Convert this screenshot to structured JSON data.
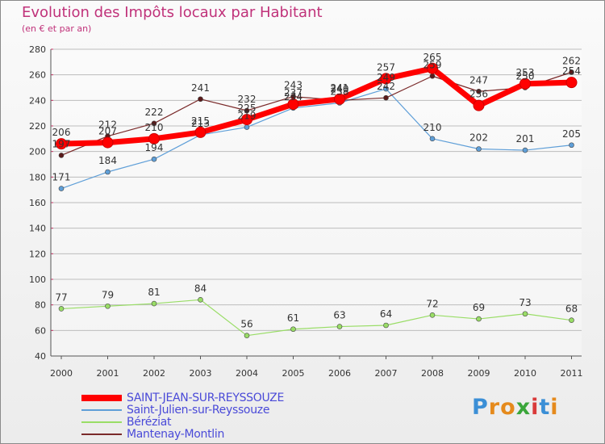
{
  "title": "Evolution des Impôts locaux par Habitant",
  "subtitle": "(en € et par an)",
  "logo_text": "Proxiti",
  "chart_data": {
    "type": "line",
    "title": "Evolution des Impôts locaux par Habitant",
    "subtitle": "(en € et par an)",
    "categories": [
      "2000",
      "2001",
      "2002",
      "2003",
      "2004",
      "2005",
      "2006",
      "2007",
      "2008",
      "2009",
      "2010",
      "2011"
    ],
    "ylim": [
      40,
      280
    ],
    "yticks": [
      40,
      60,
      80,
      100,
      120,
      140,
      160,
      180,
      200,
      220,
      240,
      260,
      280
    ],
    "grid": "horizontal",
    "legend_position": "bottom-left",
    "series": [
      {
        "name": "SAINT-JEAN-SUR-REYSSOUZE",
        "color": "#ff0000",
        "values": [
          206,
          207,
          210,
          215,
          225,
          237,
          241,
          257,
          265,
          236,
          253,
          254
        ]
      },
      {
        "name": "Saint-Julien-sur-Reyssouze",
        "color": "#5f9fd8",
        "values": [
          171,
          184,
          194,
          213,
          219,
          234,
          238,
          249,
          210,
          202,
          201,
          205
        ]
      },
      {
        "name": "Béréziat",
        "color": "#99dd66",
        "values": [
          77,
          79,
          81,
          84,
          56,
          61,
          63,
          64,
          72,
          69,
          73,
          68
        ]
      },
      {
        "name": "Mantenay-Montlin",
        "color": "#7a2a2a",
        "values": [
          197,
          212,
          222,
          241,
          232,
          243,
          240,
          242,
          259,
          247,
          250,
          262
        ]
      }
    ]
  }
}
